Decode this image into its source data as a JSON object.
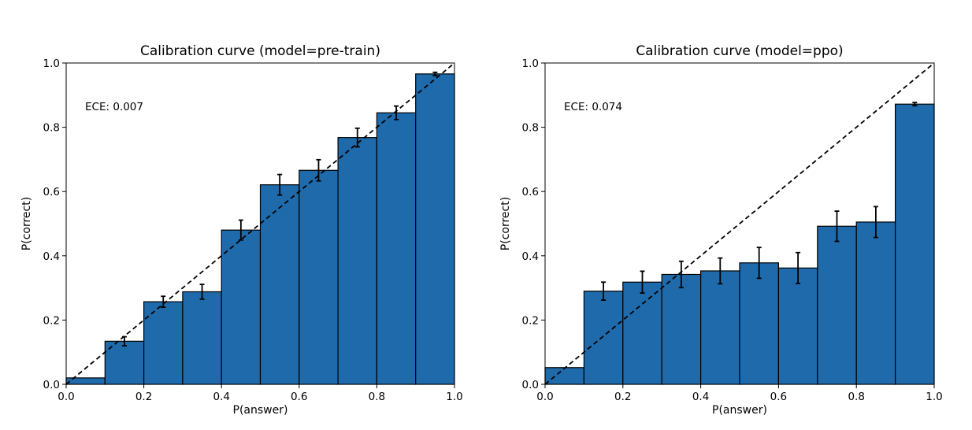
{
  "chart_data": [
    {
      "type": "bar",
      "title": "Calibration curve (model=pre-train)",
      "xlabel": "P(answer)",
      "ylabel": "P(correct)",
      "annotation": "ECE: 0.007",
      "xlim": [
        0,
        1
      ],
      "ylim": [
        0,
        1
      ],
      "xticks": [
        "0.0",
        "0.2",
        "0.4",
        "0.6",
        "0.8",
        "1.0"
      ],
      "yticks": [
        "0.0",
        "0.2",
        "0.4",
        "0.6",
        "0.8",
        "1.0"
      ],
      "bin_edges": [
        0,
        0.1,
        0.2,
        0.3,
        0.4,
        0.5,
        0.6,
        0.7,
        0.8,
        0.9,
        1.0
      ],
      "values": [
        0.02,
        0.134,
        0.257,
        0.288,
        0.48,
        0.621,
        0.666,
        0.768,
        0.845,
        0.966
      ],
      "errors": [
        0.0,
        0.014,
        0.017,
        0.023,
        0.031,
        0.032,
        0.033,
        0.029,
        0.021,
        0.005
      ],
      "diagonal": true,
      "grid": false,
      "bar_color": "#1f6aab"
    },
    {
      "type": "bar",
      "title": "Calibration curve (model=ppo)",
      "xlabel": "P(answer)",
      "ylabel": "P(correct)",
      "annotation": "ECE: 0.074",
      "xlim": [
        0,
        1
      ],
      "ylim": [
        0,
        1
      ],
      "xticks": [
        "0.0",
        "0.2",
        "0.4",
        "0.6",
        "0.8",
        "1.0"
      ],
      "yticks": [
        "0.0",
        "0.2",
        "0.4",
        "0.6",
        "0.8",
        "1.0"
      ],
      "bin_edges": [
        0,
        0.1,
        0.2,
        0.3,
        0.4,
        0.5,
        0.6,
        0.7,
        0.8,
        0.9,
        1.0
      ],
      "values": [
        0.052,
        0.29,
        0.318,
        0.342,
        0.353,
        0.378,
        0.362,
        0.492,
        0.505,
        0.872
      ],
      "errors": [
        0.0,
        0.028,
        0.034,
        0.041,
        0.04,
        0.048,
        0.048,
        0.047,
        0.048,
        0.005
      ],
      "diagonal": true,
      "grid": false,
      "bar_color": "#1f6aab"
    }
  ]
}
